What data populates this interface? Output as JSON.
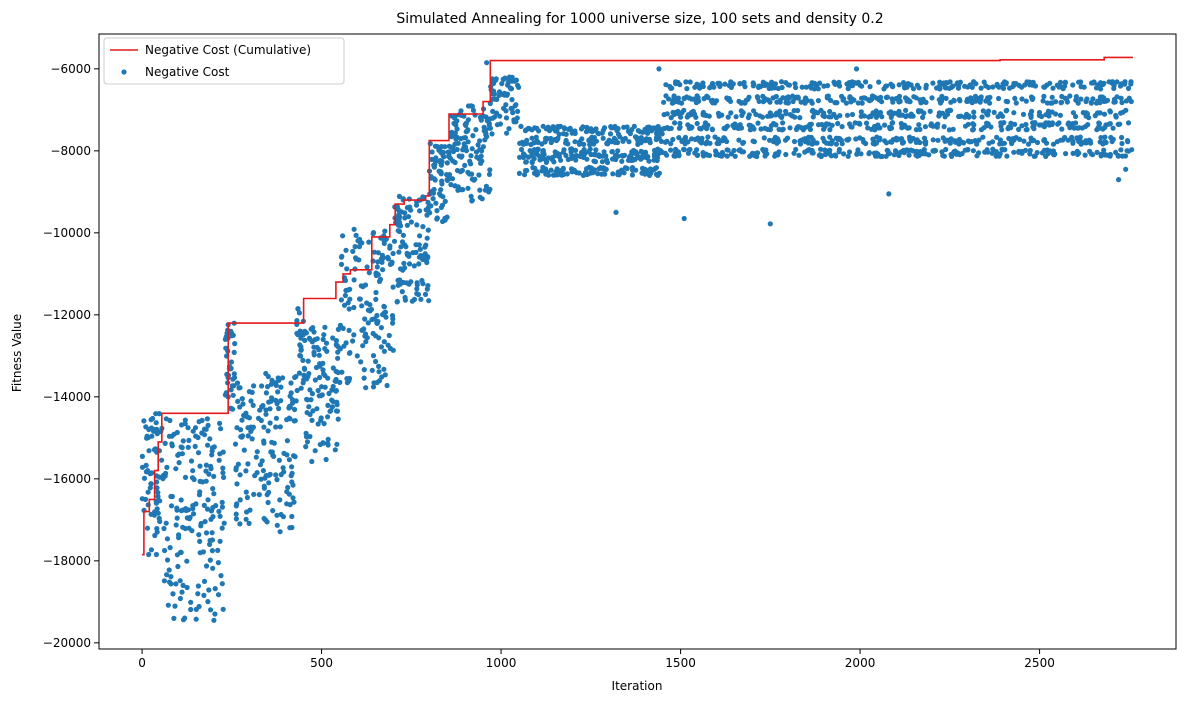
{
  "chart_data": {
    "type": "scatter",
    "title": "Simulated Annealing for 1000 universe size, 100 sets and density 0.2",
    "xlabel": "Iteration",
    "ylabel": "Fitness Value",
    "xlim": [
      -120,
      2880
    ],
    "ylim": [
      -20150,
      -5150
    ],
    "xticks": [
      0,
      500,
      1000,
      1500,
      2000,
      2500
    ],
    "yticks": [
      -20000,
      -18000,
      -16000,
      -14000,
      -12000,
      -10000,
      -8000,
      -6000
    ],
    "grid": false,
    "legend_position": "top-left",
    "colors": {
      "line": "#e41a1c",
      "points": "#1f77b4"
    },
    "series": [
      {
        "name": "Negative Cost (Cumulative)",
        "kind": "step-line",
        "x": [
          0,
          5,
          20,
          35,
          45,
          55,
          232,
          240,
          430,
          450,
          540,
          560,
          580,
          640,
          690,
          705,
          730,
          790,
          800,
          855,
          950,
          970,
          2390,
          2680,
          2760
        ],
        "y": [
          -17850,
          -16800,
          -16500,
          -15800,
          -15100,
          -14400,
          -14400,
          -12200,
          -12200,
          -11600,
          -11200,
          -11000,
          -10900,
          -10100,
          -9800,
          -9300,
          -9200,
          -9100,
          -7750,
          -7100,
          -6800,
          -5800,
          -5780,
          -5720,
          -5720
        ]
      },
      {
        "name": "Negative Cost",
        "kind": "scatter",
        "segments": [
          {
            "x_range": [
              0,
              60
            ],
            "y_range": [
              -17900,
              -14400
            ],
            "count": 70
          },
          {
            "x_range": [
              60,
              230
            ],
            "y_range": [
              -19500,
              -14500
            ],
            "count": 180
          },
          {
            "x_range": [
              230,
              260
            ],
            "y_range": [
              -14400,
              -12200
            ],
            "count": 40
          },
          {
            "x_range": [
              260,
              430
            ],
            "y_range": [
              -17300,
              -13400
            ],
            "count": 170
          },
          {
            "x_range": [
              430,
              450
            ],
            "y_range": [
              -14000,
              -11800
            ],
            "count": 25
          },
          {
            "x_range": [
              450,
              550
            ],
            "y_range": [
              -15600,
              -12200
            ],
            "count": 110
          },
          {
            "x_range": [
              550,
              700
            ],
            "y_range": [
              -13800,
              -9900
            ],
            "count": 150
          },
          {
            "x_range": [
              700,
              800
            ],
            "y_range": [
              -11700,
              -9100
            ],
            "count": 110
          },
          {
            "x_range": [
              800,
              860
            ],
            "y_range": [
              -9800,
              -7800
            ],
            "count": 70
          },
          {
            "x_range": [
              860,
              970
            ],
            "y_range": [
              -9300,
              -6900
            ],
            "count": 120
          },
          {
            "x_range": [
              970,
              1050
            ],
            "y_range": [
              -7600,
              -6200
            ],
            "count": 70
          },
          {
            "x_range": [
              1050,
              1450
            ],
            "y_range": [
              -8700,
              -7300
            ],
            "count": 400
          },
          {
            "x_range": [
              1450,
              2760
            ],
            "y_range": [
              -8300,
              -6300
            ],
            "count": 1250
          }
        ],
        "outliers": [
          {
            "x": 200,
            "y": -19450
          },
          {
            "x": 1320,
            "y": -9500
          },
          {
            "x": 1510,
            "y": -9650
          },
          {
            "x": 1750,
            "y": -9780
          },
          {
            "x": 2080,
            "y": -9050
          },
          {
            "x": 2720,
            "y": -8700
          },
          {
            "x": 2740,
            "y": -8450
          },
          {
            "x": 960,
            "y": -5850
          },
          {
            "x": 1440,
            "y": -6000
          },
          {
            "x": 1990,
            "y": -6000
          }
        ]
      }
    ]
  }
}
